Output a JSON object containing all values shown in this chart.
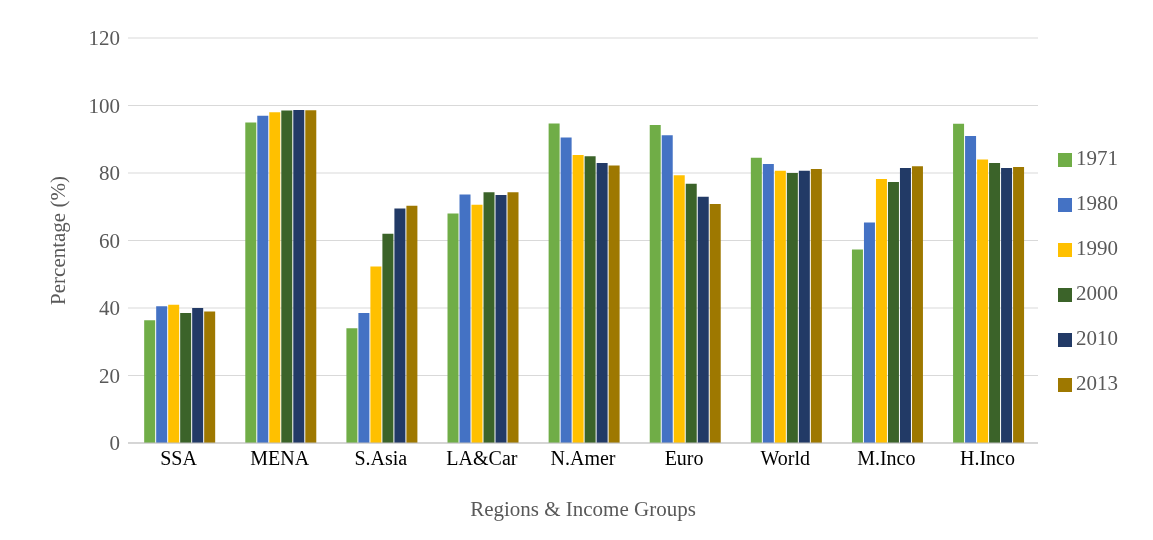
{
  "chart_data": {
    "type": "bar",
    "xlabel": "Regions & Income Groups",
    "ylabel": "Percentage (%)",
    "categories": [
      "SSA",
      "MENA",
      "S.Asia",
      "LA&Car",
      "N.Amer",
      "Euro",
      "World",
      "M.Inco",
      "H.Inco"
    ],
    "series": [
      {
        "name": "1971",
        "color": "#70ad47",
        "values": [
          36.4,
          95,
          34,
          68,
          94.7,
          94.2,
          84.5,
          57.3,
          94.6
        ]
      },
      {
        "name": "1980",
        "color": "#4472c4",
        "values": [
          40.5,
          97,
          38.5,
          73.6,
          90.5,
          91.2,
          82.7,
          65.3,
          91
        ]
      },
      {
        "name": "1990",
        "color": "#ffc000",
        "values": [
          41,
          98,
          52.3,
          70.6,
          85.3,
          79.3,
          80.7,
          78.2,
          84
        ]
      },
      {
        "name": "2000",
        "color": "#3b6329",
        "values": [
          38.5,
          98.5,
          62,
          74.3,
          85,
          76.8,
          80,
          77.3,
          83
        ]
      },
      {
        "name": "2010",
        "color": "#223a66",
        "values": [
          40,
          98.7,
          69.5,
          73.5,
          83,
          73,
          80.7,
          81.5,
          81.5
        ]
      },
      {
        "name": "2013",
        "color": "#9e7800",
        "values": [
          39,
          98.6,
          70.3,
          74.3,
          82.2,
          70.8,
          81.2,
          82,
          81.8
        ]
      }
    ],
    "ylim": [
      0,
      120
    ],
    "yticks": [
      0,
      20,
      40,
      60,
      80,
      100,
      120
    ],
    "grid": "y",
    "legend": "right"
  }
}
